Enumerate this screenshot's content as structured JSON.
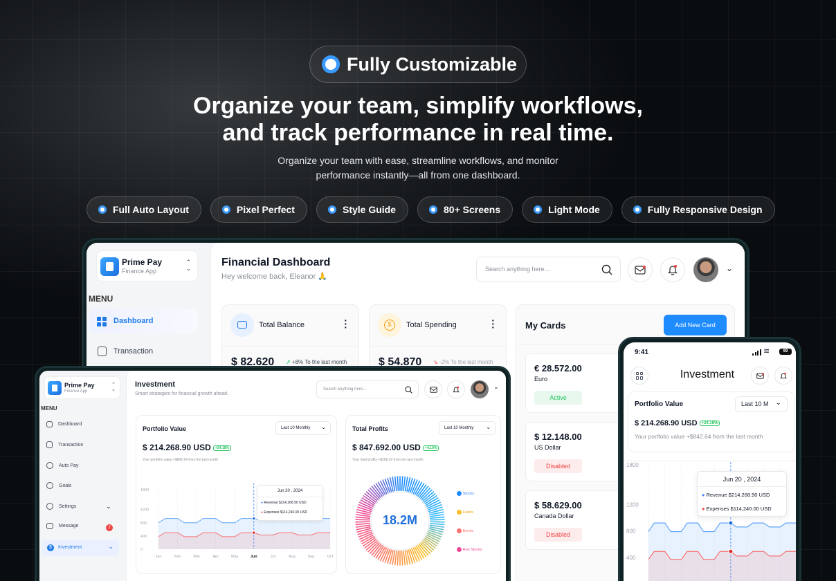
{
  "hero": {
    "badge": "Fully Customizable",
    "title_line1": "Organize your team, simplify workflows,",
    "title_line2": "and track performance in real time.",
    "sub_line1": "Organize your team with ease, streamline workflows, and monitor",
    "sub_line2": "performance instantly—all from one dashboard.",
    "features": [
      "Full Auto Layout",
      "Pixel Perfect",
      "Style Guide",
      "80+ Screens",
      "Light Mode",
      "Fully Responsive Design"
    ]
  },
  "colors": {
    "accent": "#1e8cff",
    "revenue": "#3b82f6",
    "expenses": "#ef4444",
    "bg": "#101316"
  },
  "back": {
    "brand": "Prime Pay",
    "brand_sub": "Finance App",
    "menu": "MENU",
    "nav": [
      "Dashboard",
      "Transaction"
    ],
    "title": "Financial Dashboard",
    "subtitle": "Hey welcome back, Eleanor 🙏",
    "search_placeholder": "Search anything here...",
    "total_balance_label": "Total Balance",
    "total_balance": "$ 82.620",
    "balance_change": "+8% To the last month",
    "total_spending_label": "Total Spending",
    "total_spending": "$ 54.870",
    "spending_change": "-2% To the last month",
    "my_cards": "My Cards",
    "add_card": "Add New Card",
    "cards": [
      {
        "amount": "€ 28.572.00",
        "currency": "Euro",
        "status": "Active"
      },
      {
        "amount": "$ 12.148.00",
        "currency": "US Dollar",
        "status": "Disabled"
      },
      {
        "amount": "$ 58.629.00",
        "currency": "Canada Dollar",
        "status": "Disabled"
      }
    ]
  },
  "tablet": {
    "brand": "Prime Pay",
    "brand_sub": "Finance App",
    "menu": "MENU",
    "nav": [
      "Dashboard",
      "Transaction",
      "Auto Pay",
      "Goals",
      "Settings",
      "Message",
      "Investment"
    ],
    "message_count": "2",
    "title": "Investment",
    "subtitle": "Smart strategies for financial growth ahead.",
    "search_placeholder": "Search anything here...",
    "portfolio": {
      "label": "Portfolio Value",
      "filter": "Last 10 Monthly",
      "value": "$ 214.268.90 USD",
      "change": "+24.18%",
      "note": "Your portfolio value +$842.64 from the last month"
    },
    "profits": {
      "label": "Total Profits",
      "filter": "Last 10 Monthly",
      "value": "$ 847.692.00 USD",
      "change": "+4.10%",
      "note": "Your total profits +$268.20 from the last month",
      "center": "18.2M",
      "legend": [
        "Stocks",
        "Funds",
        "Bonds",
        "Red Stocks"
      ]
    },
    "tooltip": {
      "date": "Jun 20 , 2024",
      "revenue_label": "Revenue",
      "revenue": "$214,268.90 USD",
      "expenses_label": "Expenses",
      "expenses": "$114,240.00 USD"
    }
  },
  "phone": {
    "time": "9:41",
    "battery": "99",
    "title": "Investment",
    "portfolio_label": "Portfolio Value",
    "filter": "Last 10 M",
    "value": "$ 214.268.90 USD",
    "change": "+24.18%",
    "note": "Your portfolio value +$842.64 from the last month",
    "tooltip": {
      "date": "Jun 20 , 2024",
      "revenue_label": "Revenue",
      "revenue": "$214,268.90 USD",
      "expenses_label": "Expenses",
      "expenses": "$114,240.00 USD"
    },
    "yticks": [
      "1800",
      "1200",
      "800",
      "400"
    ]
  },
  "chart_data": {
    "type": "line",
    "categories": [
      "Jan",
      "Feb",
      "Mar",
      "Apr",
      "May",
      "Jun",
      "Jul",
      "Aug",
      "Sep",
      "Oct"
    ],
    "yticks": [
      "1800",
      "1200",
      "800",
      "400",
      "0"
    ],
    "ylim": [
      0,
      1800
    ],
    "highlight": "Jun",
    "series": [
      {
        "name": "Revenue",
        "values": [
          800,
          930,
          800,
          930,
          800,
          930,
          870,
          930,
          870,
          930
        ]
      },
      {
        "name": "Expenses",
        "values": [
          380,
          500,
          380,
          500,
          380,
          500,
          430,
          500,
          430,
          500
        ]
      }
    ]
  }
}
